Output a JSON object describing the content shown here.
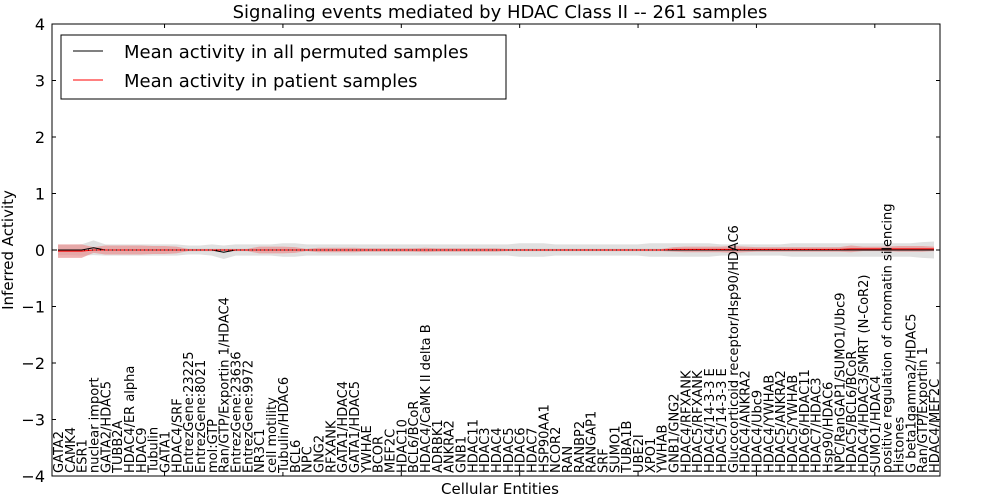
{
  "chart_data": {
    "type": "line",
    "title": "Signaling events mediated by HDAC Class II -- 261 samples",
    "xlabel": "Cellular Entities",
    "ylabel": "Inferred Activity",
    "ylim": [
      -4,
      4
    ],
    "yticks": [
      "4",
      "3",
      "2",
      "1",
      "0",
      "−1",
      "−2",
      "−3",
      "−4"
    ],
    "legend_position": "top-left",
    "legend": [
      {
        "label": "Mean activity in all permuted samples",
        "color": "#000000"
      },
      {
        "label": "Mean activity in patient samples",
        "color": "#ff0000"
      }
    ],
    "categories": [
      "GATA2",
      "CAMK4",
      "ESR1",
      "nuclear import",
      "GATA2/HDAC5",
      "TUBB2A",
      "HDAC4/ER alpha",
      "HDAC9",
      "Tubulin",
      "GATA1",
      "HDAC4/SRF",
      "EntrezGene:23225",
      "EntrezGene:8021",
      "mol:GTP",
      "Ran/GTP/Exportin 1/HDAC4",
      "EntrezGene:23636",
      "EntrezGene:9972",
      "NR3C1",
      "cell motility",
      "Tubulin/HDAC6",
      "BCL6",
      "NPC",
      "GNG2",
      "RFXANK",
      "GATA1/HDAC4",
      "GATA1/HDAC5",
      "YWHAE",
      "BCOR",
      "MEF2C",
      "HDAC10",
      "BCL6/BCoR",
      "HDAC4/CaMK II delta B",
      "ADRBK1",
      "ANKRA2",
      "GNB1",
      "HDAC11",
      "HDAC3",
      "HDAC4",
      "HDAC5",
      "HDAC6",
      "HDAC7",
      "HSP90AA1",
      "NCOR2",
      "RAN",
      "RANBP2",
      "RANGAP1",
      "SRF",
      "SUMO1",
      "TUBA1B",
      "UBE2I",
      "XPO1",
      "YWHAB",
      "GNB1/GNG2",
      "HDAC4/RFXANK",
      "HDAC5/RFXANK",
      "HDAC4/14-3-3 E",
      "HDAC5/14-3-3 E",
      "Glucocorticoid receptor/Hsp90/HDAC6",
      "HDAC4/ANKRA2",
      "HDAC4/Ubc9",
      "HDAC4/YWHAB",
      "HDAC5/ANKRA2",
      "HDAC5/YWHAB",
      "HDAC6/HDAC11",
      "HDAC7/HDAC3",
      "Hsp90/HDAC6",
      "NPC/RanGAP1/SUMO1/Ubc9",
      "HDAC5/BCL6/BCoR",
      "HDAC4/HDAC3/SMRT (N-CoR2)",
      "SUMO1/HDAC4",
      "positive regulation of chromatin silencing",
      "Histones",
      "G beta1gamma2/HDAC5",
      "Ran/GTP/Exportin 1",
      "HDAC4/MEF2C"
    ],
    "series": [
      {
        "name": "Mean activity in all permuted samples",
        "color": "#000000",
        "band_color": "#cccccc",
        "values": [
          0,
          0,
          0,
          0.04,
          0,
          0,
          0,
          0,
          0,
          0,
          0,
          0,
          0,
          0,
          -0.04,
          0,
          0,
          0,
          0,
          0,
          0,
          0,
          0,
          0,
          0,
          0,
          0,
          0,
          0,
          0,
          0,
          0,
          0,
          0,
          0,
          0,
          0,
          0,
          0,
          0,
          0,
          0,
          0,
          0,
          0,
          0,
          0,
          0,
          0,
          0,
          0,
          0,
          0,
          0,
          0,
          0,
          0,
          0,
          0,
          0,
          0,
          0,
          0,
          0,
          0,
          0,
          0,
          0,
          0,
          0,
          0,
          0,
          0,
          0,
          0
        ],
        "band": [
          0.09,
          0.09,
          0.1,
          0.13,
          0.1,
          0.1,
          0.1,
          0.1,
          0.1,
          0.1,
          0.1,
          0.08,
          0.08,
          0.1,
          0.12,
          0.1,
          0.1,
          0.1,
          0.1,
          0.12,
          0.12,
          0.1,
          0.1,
          0.1,
          0.1,
          0.1,
          0.1,
          0.1,
          0.1,
          0.1,
          0.1,
          0.1,
          0.1,
          0.1,
          0.1,
          0.1,
          0.1,
          0.1,
          0.1,
          0.12,
          0.12,
          0.12,
          0.1,
          0.1,
          0.1,
          0.1,
          0.1,
          0.1,
          0.1,
          0.1,
          0.12,
          0.12,
          0.12,
          0.12,
          0.12,
          0.12,
          0.1,
          0.1,
          0.1,
          0.1,
          0.1,
          0.1,
          0.12,
          0.12,
          0.12,
          0.12,
          0.12,
          0.12,
          0.12,
          0.12,
          0.12,
          0.12,
          0.12,
          0.14,
          0.15
        ]
      },
      {
        "name": "Mean activity in patient samples",
        "color": "#ff0000",
        "band_color": "#e89090",
        "values": [
          -0.02,
          -0.02,
          -0.02,
          0,
          0,
          0,
          0,
          0,
          0,
          0,
          0,
          0,
          0,
          0,
          0,
          0,
          0,
          0,
          0,
          0,
          0,
          0,
          0,
          0,
          0,
          0,
          0,
          0,
          0,
          0,
          0,
          0,
          0,
          0,
          0,
          0,
          0,
          0,
          0,
          0,
          0,
          0,
          0,
          0,
          0,
          0,
          0,
          0,
          0,
          0,
          0,
          0,
          0.01,
          0.01,
          0.01,
          0.01,
          0.01,
          0.01,
          0.01,
          0.01,
          0.01,
          0.01,
          0.01,
          0.01,
          0.01,
          0.01,
          0.01,
          0.02,
          0.02,
          0.02,
          0.02,
          0.02,
          0.02,
          0.02,
          0.02
        ],
        "band": [
          0.12,
          0.12,
          0.12,
          0.05,
          0.08,
          0.08,
          0.08,
          0.08,
          0.07,
          0.07,
          0.06,
          0.02,
          0.02,
          0.02,
          0.02,
          0.02,
          0.02,
          0.06,
          0.06,
          0.06,
          0.05,
          0.02,
          0.04,
          0.04,
          0.04,
          0.04,
          0.03,
          0.03,
          0.03,
          0.03,
          0.03,
          0.04,
          0.03,
          0.03,
          0.03,
          0.03,
          0.03,
          0.03,
          0.02,
          0.02,
          0.02,
          0.02,
          0.02,
          0.02,
          0.02,
          0.02,
          0.02,
          0.02,
          0.02,
          0.02,
          0.02,
          0.02,
          0.04,
          0.05,
          0.05,
          0.05,
          0.05,
          0.06,
          0.05,
          0.04,
          0.04,
          0.04,
          0.04,
          0.04,
          0.04,
          0.04,
          0.04,
          0.06,
          0.04,
          0.04,
          0.04,
          0.05,
          0.05,
          0.05,
          0.04
        ]
      }
    ]
  }
}
